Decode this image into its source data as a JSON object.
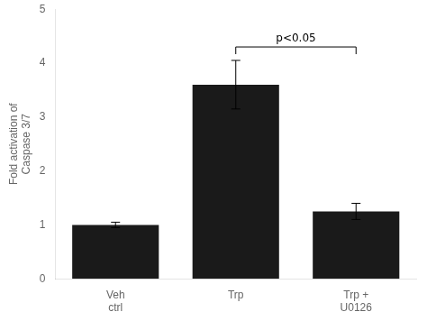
{
  "chart_data": {
    "type": "bar",
    "categories": [
      "Veh\nctrl",
      "Trp",
      "Trp +\nU0126"
    ],
    "values": [
      1.0,
      3.6,
      1.25
    ],
    "errors": [
      0.05,
      0.45,
      0.15
    ],
    "color": "#1a1a1a",
    "ylabel": "Fold activation of\nCaspase 3/7",
    "ylim": [
      0,
      5
    ],
    "yticks": [
      0,
      1,
      2,
      3,
      4,
      5
    ],
    "grid": false,
    "annotations": [
      {
        "text": "p<0.05",
        "x1": "Trp",
        "x2": "Trp +\nU0126",
        "y": 4.3
      }
    ]
  }
}
